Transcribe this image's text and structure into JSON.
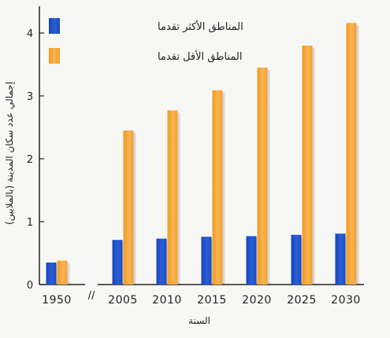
{
  "chart_data": {
    "type": "bar",
    "categories": [
      "1950",
      "2005",
      "2010",
      "2015",
      "2020",
      "2025",
      "2030"
    ],
    "series": [
      {
        "name": "المناطق الأكثر تقدما",
        "color": "#1f4fc8",
        "values": [
          0.35,
          0.71,
          0.73,
          0.76,
          0.77,
          0.79,
          0.81
        ]
      },
      {
        "name": "المناطق الأقل تقدما",
        "color": "#f7a532",
        "values": [
          0.38,
          2.45,
          2.77,
          3.09,
          3.45,
          3.8,
          4.16
        ]
      }
    ],
    "xlabel": "السنة",
    "ylabel": "إجمالي عدد سكان المدينة (بالملايين)",
    "ylim": [
      0,
      4.3
    ],
    "yticks": [
      0,
      1,
      2,
      3,
      4
    ],
    "axis_break": "//",
    "legend_position": "top-left",
    "grid": false
  }
}
